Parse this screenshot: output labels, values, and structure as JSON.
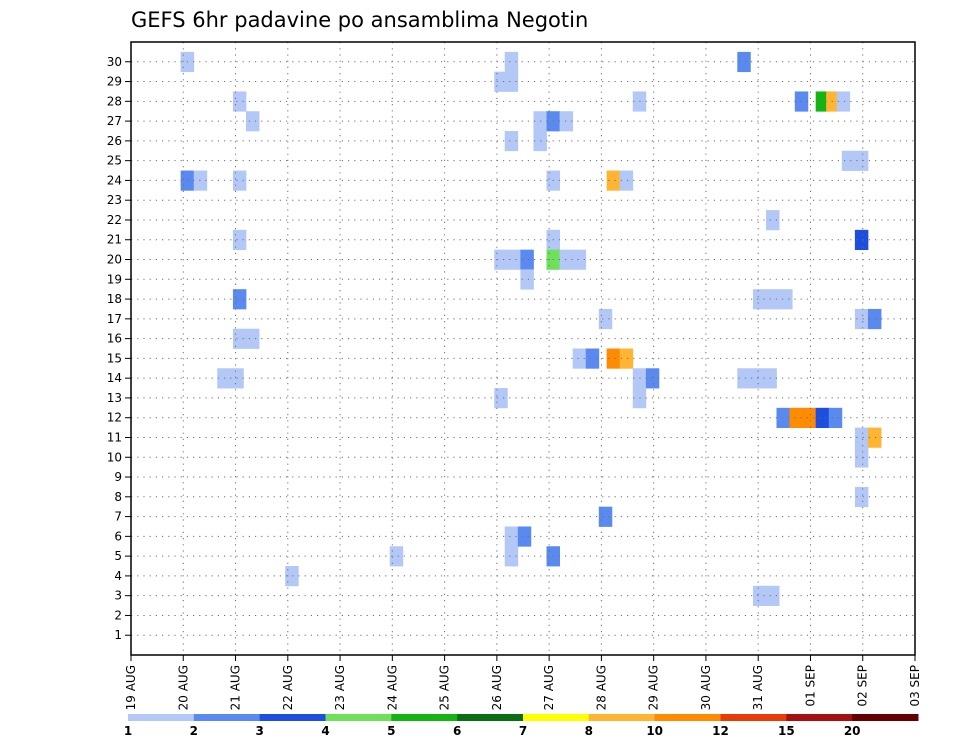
{
  "chart_data": {
    "type": "heatmap",
    "title": "GEFS 6hr padavine po ansamblima Negotin",
    "y_ticks": [
      "1",
      "2",
      "3",
      "4",
      "5",
      "6",
      "7",
      "8",
      "9",
      "10",
      "11",
      "12",
      "13",
      "14",
      "15",
      "16",
      "17",
      "18",
      "19",
      "20",
      "21",
      "22",
      "23",
      "24",
      "25",
      "26",
      "27",
      "28",
      "29",
      "30"
    ],
    "x_ticks": [
      "19 AUG",
      "20 AUG",
      "21 AUG",
      "22 AUG",
      "23 AUG",
      "24 AUG",
      "25 AUG",
      "26 AUG",
      "27 AUG",
      "28 AUG",
      "29 AUG",
      "30 AUG",
      "31 AUG",
      "01 SEP",
      "02 SEP",
      "03 SEP"
    ],
    "x_range_days": [
      0,
      15
    ],
    "y_range": [
      0,
      30
    ],
    "grid": true,
    "colorbar": {
      "labels": [
        "1",
        "2",
        "3",
        "4",
        "5",
        "6",
        "7",
        "8",
        "10",
        "12",
        "15",
        "20"
      ],
      "colors": [
        "#b4c8f8",
        "#5a8af0",
        "#1e4ee0",
        "#6ee05a",
        "#14b414",
        "#0a6e14",
        "#ffff00",
        "#ffb432",
        "#ff8c00",
        "#e63c0a",
        "#a50f0f",
        "#640000"
      ]
    },
    "cells": [
      {
        "m": 30,
        "t": 0.95,
        "b": 1
      },
      {
        "m": 30,
        "t": 7.15,
        "b": 1
      },
      {
        "m": 30,
        "t": 11.6,
        "b": 2
      },
      {
        "m": 29,
        "t": 6.95,
        "b": 1
      },
      {
        "m": 29,
        "t": 7.15,
        "b": 1
      },
      {
        "m": 28,
        "t": 1.95,
        "b": 1
      },
      {
        "m": 28,
        "t": 9.6,
        "b": 1
      },
      {
        "m": 28,
        "t": 12.7,
        "b": 2
      },
      {
        "m": 28,
        "t": 13.1,
        "b": 5
      },
      {
        "m": 28,
        "t": 13.3,
        "b": 8
      },
      {
        "m": 28,
        "t": 13.5,
        "b": 1
      },
      {
        "m": 27,
        "t": 2.2,
        "b": 1
      },
      {
        "m": 27,
        "t": 7.7,
        "b": 1
      },
      {
        "m": 27,
        "t": 7.95,
        "b": 2
      },
      {
        "m": 27,
        "t": 8.2,
        "b": 1
      },
      {
        "m": 26,
        "t": 7.15,
        "b": 1
      },
      {
        "m": 26,
        "t": 7.7,
        "b": 1
      },
      {
        "m": 25,
        "t": 13.6,
        "b": 1
      },
      {
        "m": 25,
        "t": 13.85,
        "b": 1
      },
      {
        "m": 24,
        "t": 0.95,
        "b": 2
      },
      {
        "m": 24,
        "t": 1.2,
        "b": 1
      },
      {
        "m": 24,
        "t": 1.95,
        "b": 1
      },
      {
        "m": 24,
        "t": 7.95,
        "b": 1
      },
      {
        "m": 24,
        "t": 9.1,
        "b": 8
      },
      {
        "m": 24,
        "t": 9.35,
        "b": 1
      },
      {
        "m": 22,
        "t": 12.15,
        "b": 1
      },
      {
        "m": 21,
        "t": 1.95,
        "b": 1
      },
      {
        "m": 21,
        "t": 7.95,
        "b": 1
      },
      {
        "m": 21,
        "t": 13.85,
        "b": 3
      },
      {
        "m": 20,
        "t": 6.95,
        "b": 1
      },
      {
        "m": 20,
        "t": 7.2,
        "b": 1
      },
      {
        "m": 20,
        "t": 7.45,
        "b": 2
      },
      {
        "m": 20,
        "t": 7.95,
        "b": 4
      },
      {
        "m": 20,
        "t": 8.2,
        "b": 1
      },
      {
        "m": 20,
        "t": 8.45,
        "b": 1
      },
      {
        "m": 19,
        "t": 7.45,
        "b": 1
      },
      {
        "m": 18,
        "t": 1.95,
        "b": 2
      },
      {
        "m": 18,
        "t": 11.9,
        "b": 1
      },
      {
        "m": 18,
        "t": 12.15,
        "b": 1
      },
      {
        "m": 18,
        "t": 12.4,
        "b": 1
      },
      {
        "m": 17,
        "t": 8.95,
        "b": 1
      },
      {
        "m": 17,
        "t": 13.85,
        "b": 1
      },
      {
        "m": 17,
        "t": 14.1,
        "b": 2
      },
      {
        "m": 16,
        "t": 1.95,
        "b": 1
      },
      {
        "m": 16,
        "t": 2.2,
        "b": 1
      },
      {
        "m": 15,
        "t": 8.45,
        "b": 1
      },
      {
        "m": 15,
        "t": 8.7,
        "b": 2
      },
      {
        "m": 15,
        "t": 9.1,
        "b": 9
      },
      {
        "m": 15,
        "t": 9.35,
        "b": 8
      },
      {
        "m": 14,
        "t": 1.65,
        "b": 1
      },
      {
        "m": 14,
        "t": 1.9,
        "b": 1
      },
      {
        "m": 14,
        "t": 9.6,
        "b": 1
      },
      {
        "m": 14,
        "t": 9.85,
        "b": 2
      },
      {
        "m": 14,
        "t": 11.6,
        "b": 1
      },
      {
        "m": 14,
        "t": 11.85,
        "b": 1
      },
      {
        "m": 14,
        "t": 12.1,
        "b": 1
      },
      {
        "m": 13,
        "t": 6.95,
        "b": 1
      },
      {
        "m": 13,
        "t": 9.6,
        "b": 1
      },
      {
        "m": 12,
        "t": 12.35,
        "b": 2
      },
      {
        "m": 12,
        "t": 12.6,
        "b": 9
      },
      {
        "m": 12,
        "t": 12.85,
        "b": 9
      },
      {
        "m": 12,
        "t": 13.1,
        "b": 3
      },
      {
        "m": 12,
        "t": 13.35,
        "b": 2
      },
      {
        "m": 11,
        "t": 13.85,
        "b": 1
      },
      {
        "m": 11,
        "t": 14.1,
        "b": 8
      },
      {
        "m": 10,
        "t": 13.85,
        "b": 1
      },
      {
        "m": 8,
        "t": 13.85,
        "b": 1
      },
      {
        "m": 7,
        "t": 8.95,
        "b": 2
      },
      {
        "m": 6,
        "t": 7.15,
        "b": 1
      },
      {
        "m": 6,
        "t": 7.4,
        "b": 2
      },
      {
        "m": 5,
        "t": 4.95,
        "b": 1
      },
      {
        "m": 5,
        "t": 7.15,
        "b": 1
      },
      {
        "m": 5,
        "t": 7.95,
        "b": 2
      },
      {
        "m": 4,
        "t": 2.95,
        "b": 1
      },
      {
        "m": 3,
        "t": 11.9,
        "b": 1
      },
      {
        "m": 3,
        "t": 12.15,
        "b": 1
      }
    ]
  }
}
